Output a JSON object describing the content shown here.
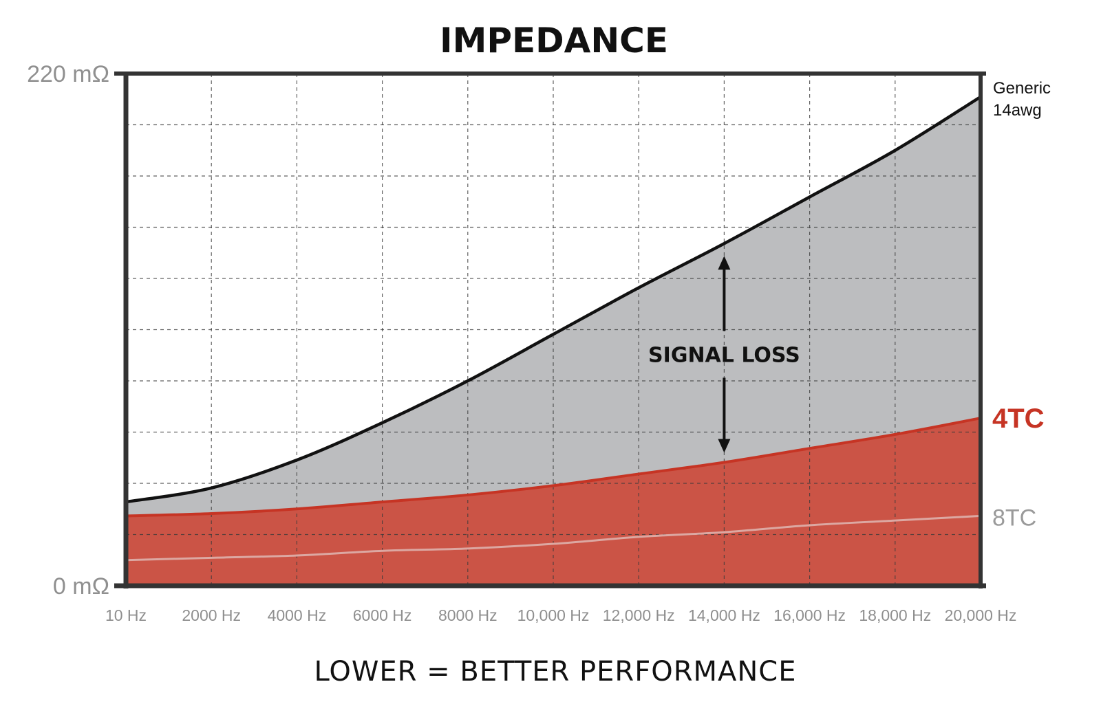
{
  "chart_data": {
    "type": "area",
    "title": "IMPEDANCE",
    "xlabel": "LOWER = BETTER PERFORMANCE",
    "ylabel": "",
    "x_tick_labels": [
      "10 Hz",
      "2000 Hz",
      "4000 Hz",
      "6000 Hz",
      "8000 Hz",
      "10,000 Hz",
      "12,000 Hz",
      "14,000 Hz",
      "16,000 Hz",
      "18,000 Hz",
      "20,000 Hz"
    ],
    "xlim": [
      0,
      20000
    ],
    "y_tick_labels": [
      "220 mΩ",
      "0 mΩ"
    ],
    "ylim": [
      0,
      220
    ],
    "grid": true,
    "x": [
      0,
      2000,
      4000,
      6000,
      8000,
      10000,
      12000,
      14000,
      16000,
      18000,
      20000
    ],
    "series": [
      {
        "name": "Generic 14awg",
        "label_lines": [
          "Generic",
          "14awg"
        ],
        "color": "#111111",
        "fill": "#bcbdbf",
        "values": [
          36,
          42,
          54,
          70,
          88,
          108,
          128,
          147,
          167,
          187,
          210
        ]
      },
      {
        "name": "4TC",
        "label_lines": [
          "4TC"
        ],
        "color": "#c63424",
        "fill": "#cb5446",
        "values": [
          30,
          31,
          33,
          36,
          39,
          43,
          48,
          53,
          59,
          65,
          72
        ]
      },
      {
        "name": "8TC",
        "label_lines": [
          "8TC"
        ],
        "color": "#dca8a2",
        "label_color": "#9a9a9a",
        "fill": "none",
        "values": [
          11,
          12,
          13,
          15,
          16,
          18,
          21,
          23,
          26,
          28,
          30
        ]
      }
    ],
    "annotations": [
      {
        "text": "SIGNAL LOSS",
        "x": 14000,
        "arrow_from": 147,
        "arrow_to": 53
      }
    ]
  }
}
